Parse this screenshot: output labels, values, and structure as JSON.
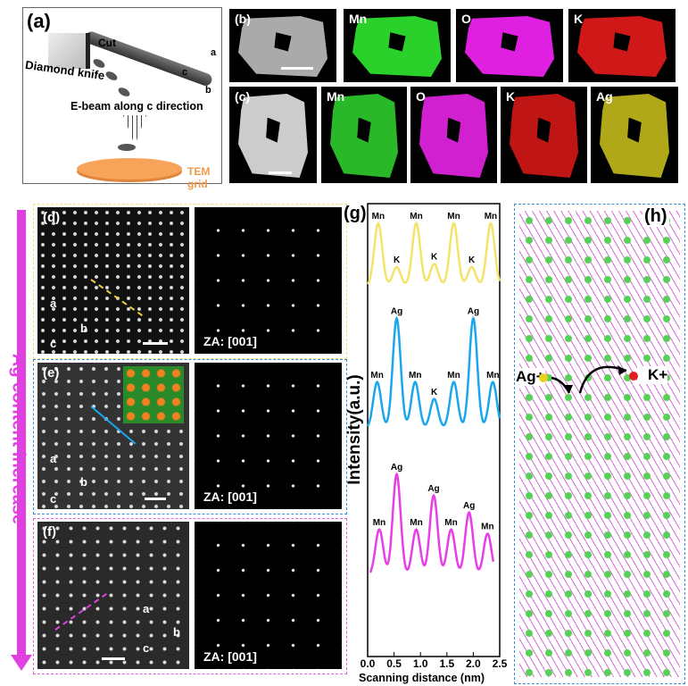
{
  "panel_a": {
    "label": "(a)",
    "cut": "Cut",
    "knife": "Diamond knife",
    "ebeam": "E-beam along c direction",
    "grid": "TEM grid",
    "axes": [
      "a",
      "c",
      "b"
    ]
  },
  "panel_b": {
    "label": "(b)",
    "maps": [
      "Mn",
      "O",
      "K"
    ]
  },
  "panel_c": {
    "label": "(c)",
    "maps": [
      "Mn",
      "O",
      "K",
      "Ag"
    ]
  },
  "side_arrow": {
    "text": "Ag content increase",
    "color": "#e040e0"
  },
  "panel_d": {
    "label": "(d)",
    "za": "ZA: [001]",
    "axes": [
      "a",
      "b",
      "c"
    ],
    "border": "#f0e07a"
  },
  "panel_e": {
    "label": "(e)",
    "za": "ZA: [001]",
    "axes": [
      "a",
      "b",
      "c"
    ],
    "border": "#3a8fd8"
  },
  "panel_f": {
    "label": "(f)",
    "za": "ZA: [001]",
    "axes": [
      "a",
      "b",
      "c"
    ],
    "border": "#e060e0"
  },
  "panel_h": {
    "label": "(h)",
    "ag": "Ag+",
    "k": "K+",
    "border": "#3a8fd8"
  },
  "chart_data": {
    "type": "line",
    "panel_label": "(g)",
    "xlabel": "Scanning distance (nm)",
    "ylabel": "Intensity(a.u.)",
    "xlim": [
      0,
      2.5
    ],
    "xticks": [
      "0.0",
      "0.5",
      "1.0",
      "1.5",
      "2.0",
      "2.5"
    ],
    "series": [
      {
        "color": "#f3e469",
        "peaks": [
          {
            "x": 0.2,
            "h": 1,
            "label": "Mn"
          },
          {
            "x": 0.55,
            "h": 0.3,
            "label": "K"
          },
          {
            "x": 0.92,
            "h": 1,
            "label": "Mn"
          },
          {
            "x": 1.26,
            "h": 0.35,
            "label": "K"
          },
          {
            "x": 1.63,
            "h": 1,
            "label": "Mn"
          },
          {
            "x": 1.97,
            "h": 0.3,
            "label": "K"
          },
          {
            "x": 2.33,
            "h": 1,
            "label": "Mn"
          }
        ]
      },
      {
        "color": "#1aa7ec",
        "peaks": [
          {
            "x": 0.18,
            "h": 0.55,
            "label": "Mn"
          },
          {
            "x": 0.55,
            "h": 1.3,
            "label": "Ag"
          },
          {
            "x": 0.9,
            "h": 0.55,
            "label": "Mn"
          },
          {
            "x": 1.26,
            "h": 0.35,
            "label": "K"
          },
          {
            "x": 1.63,
            "h": 0.55,
            "label": "Mn"
          },
          {
            "x": 2.0,
            "h": 1.3,
            "label": "Ag"
          },
          {
            "x": 2.37,
            "h": 0.55,
            "label": "Mn"
          }
        ]
      },
      {
        "color": "#e83ee8",
        "peaks": [
          {
            "x": 0.22,
            "h": 0.55,
            "label": "Mn"
          },
          {
            "x": 0.55,
            "h": 1.2,
            "label": "Ag"
          },
          {
            "x": 0.92,
            "h": 0.55,
            "label": "Mn"
          },
          {
            "x": 1.25,
            "h": 0.95,
            "label": "Ag"
          },
          {
            "x": 1.58,
            "h": 0.55,
            "label": "Mn"
          },
          {
            "x": 1.92,
            "h": 0.75,
            "label": "Ag"
          },
          {
            "x": 2.27,
            "h": 0.5,
            "label": "Mn"
          }
        ]
      }
    ]
  }
}
